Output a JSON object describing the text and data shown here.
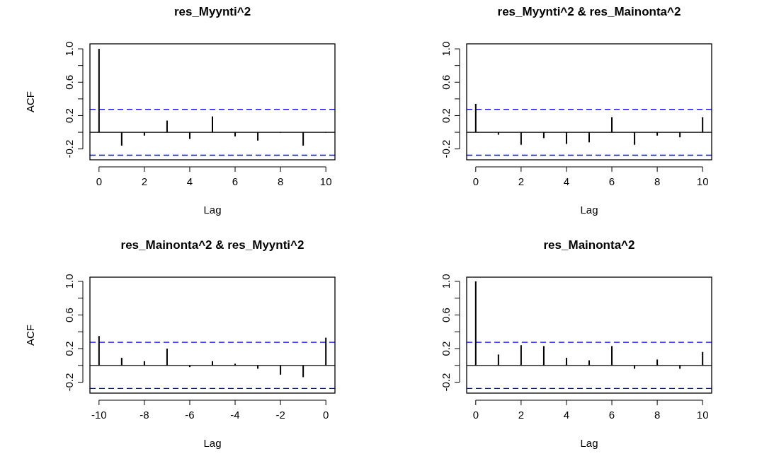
{
  "chart_data": [
    {
      "type": "bar",
      "title": "res_Myynti^2",
      "xlabel": "Lag",
      "ylabel": "ACF",
      "color": "#000000",
      "x": [
        0,
        1,
        2,
        3,
        4,
        5,
        6,
        7,
        8,
        9,
        10
      ],
      "values": [
        1.0,
        -0.16,
        -0.04,
        0.14,
        -0.08,
        0.19,
        -0.05,
        -0.1,
        0.0,
        -0.16,
        0.0
      ],
      "xlim": [
        -0.4,
        10.4
      ],
      "ylim": [
        -0.33,
        1.06
      ],
      "xticks": [
        0,
        2,
        4,
        6,
        8,
        10
      ],
      "yticks": [
        -0.2,
        {
          "value": 0,
          "label": null
        },
        0.2,
        {
          "value": 0.4,
          "label": null
        },
        0.6,
        {
          "value": 0.8,
          "label": null
        },
        {
          "value": 1.0,
          "label": "1.0"
        }
      ],
      "ref_lines": [
        {
          "axis": "y",
          "value": 0,
          "color": "#000000",
          "line_style": "solid"
        },
        {
          "axis": "y",
          "value": 0.275,
          "color": "#0000ff",
          "line_style": "dashed"
        },
        {
          "axis": "y",
          "value": -0.275,
          "color": "#0000ff",
          "line_style": "dashed"
        }
      ]
    },
    {
      "type": "bar",
      "title": "res_Myynti^2 & res_Mainonta^2",
      "xlabel": "Lag",
      "color": "#000000",
      "x": [
        0,
        1,
        2,
        3,
        4,
        5,
        6,
        7,
        8,
        9,
        10
      ],
      "values": [
        0.34,
        -0.03,
        -0.15,
        -0.07,
        -0.14,
        -0.12,
        0.18,
        -0.15,
        -0.04,
        -0.06,
        0.18
      ],
      "xlim": [
        -0.4,
        10.4
      ],
      "ylim": [
        -0.33,
        1.06
      ],
      "xticks": [
        0,
        2,
        4,
        6,
        8,
        10
      ],
      "yticks": [
        -0.2,
        {
          "value": 0,
          "label": null
        },
        0.2,
        {
          "value": 0.4,
          "label": null
        },
        0.6,
        {
          "value": 0.8,
          "label": null
        },
        {
          "value": 1.0,
          "label": "1.0"
        }
      ],
      "ref_lines": [
        {
          "axis": "y",
          "value": 0,
          "color": "#000000",
          "line_style": "solid"
        },
        {
          "axis": "y",
          "value": 0.275,
          "color": "#0000ff",
          "line_style": "dashed"
        },
        {
          "axis": "y",
          "value": -0.275,
          "color": "#0000ff",
          "line_style": "dashed"
        }
      ]
    },
    {
      "type": "bar",
      "title": "res_Mainonta^2 & res_Myynti^2",
      "xlabel": "Lag",
      "ylabel": "ACF",
      "color": "#000000",
      "x": [
        -10,
        -9,
        -8,
        -7,
        -6,
        -5,
        -4,
        -3,
        -2,
        -1,
        0
      ],
      "values": [
        0.35,
        0.09,
        0.05,
        0.2,
        -0.02,
        0.05,
        0.02,
        -0.04,
        -0.11,
        -0.14,
        0.33
      ],
      "xlim": [
        -10.4,
        0.4
      ],
      "ylim": [
        -0.33,
        1.05
      ],
      "xticks": [
        -10,
        -8,
        -6,
        -4,
        -2,
        0
      ],
      "yticks": [
        -0.2,
        {
          "value": 0,
          "label": null
        },
        0.2,
        {
          "value": 0.4,
          "label": null
        },
        0.6,
        {
          "value": 0.8,
          "label": null
        },
        {
          "value": 1.0,
          "label": "1.0"
        }
      ],
      "ref_lines": [
        {
          "axis": "y",
          "value": 0,
          "color": "#000000",
          "line_style": "solid"
        },
        {
          "axis": "y",
          "value": 0.275,
          "color": "#0000ff",
          "line_style": "dashed"
        },
        {
          "axis": "y",
          "value": -0.275,
          "color": "#0000ff",
          "line_style": "dashed"
        }
      ]
    },
    {
      "type": "bar",
      "title": "res_Mainonta^2",
      "xlabel": "Lag",
      "color": "#000000",
      "x": [
        0,
        1,
        2,
        3,
        4,
        5,
        6,
        7,
        8,
        9,
        10
      ],
      "values": [
        1.0,
        0.13,
        0.24,
        0.23,
        0.09,
        0.06,
        0.23,
        -0.04,
        0.07,
        -0.04,
        0.16
      ],
      "xlim": [
        -0.4,
        10.4
      ],
      "ylim": [
        -0.33,
        1.05
      ],
      "xticks": [
        0,
        2,
        4,
        6,
        8,
        10
      ],
      "yticks": [
        -0.2,
        {
          "value": 0,
          "label": null
        },
        0.2,
        {
          "value": 0.4,
          "label": null
        },
        0.6,
        {
          "value": 0.8,
          "label": null
        },
        {
          "value": 1.0,
          "label": "1.0"
        }
      ],
      "ref_lines": [
        {
          "axis": "y",
          "value": 0,
          "color": "#000000",
          "line_style": "solid"
        },
        {
          "axis": "y",
          "value": 0.275,
          "color": "#0000ff",
          "line_style": "dashed"
        },
        {
          "axis": "y",
          "value": -0.275,
          "color": "#0000ff",
          "line_style": "dashed"
        }
      ]
    }
  ]
}
